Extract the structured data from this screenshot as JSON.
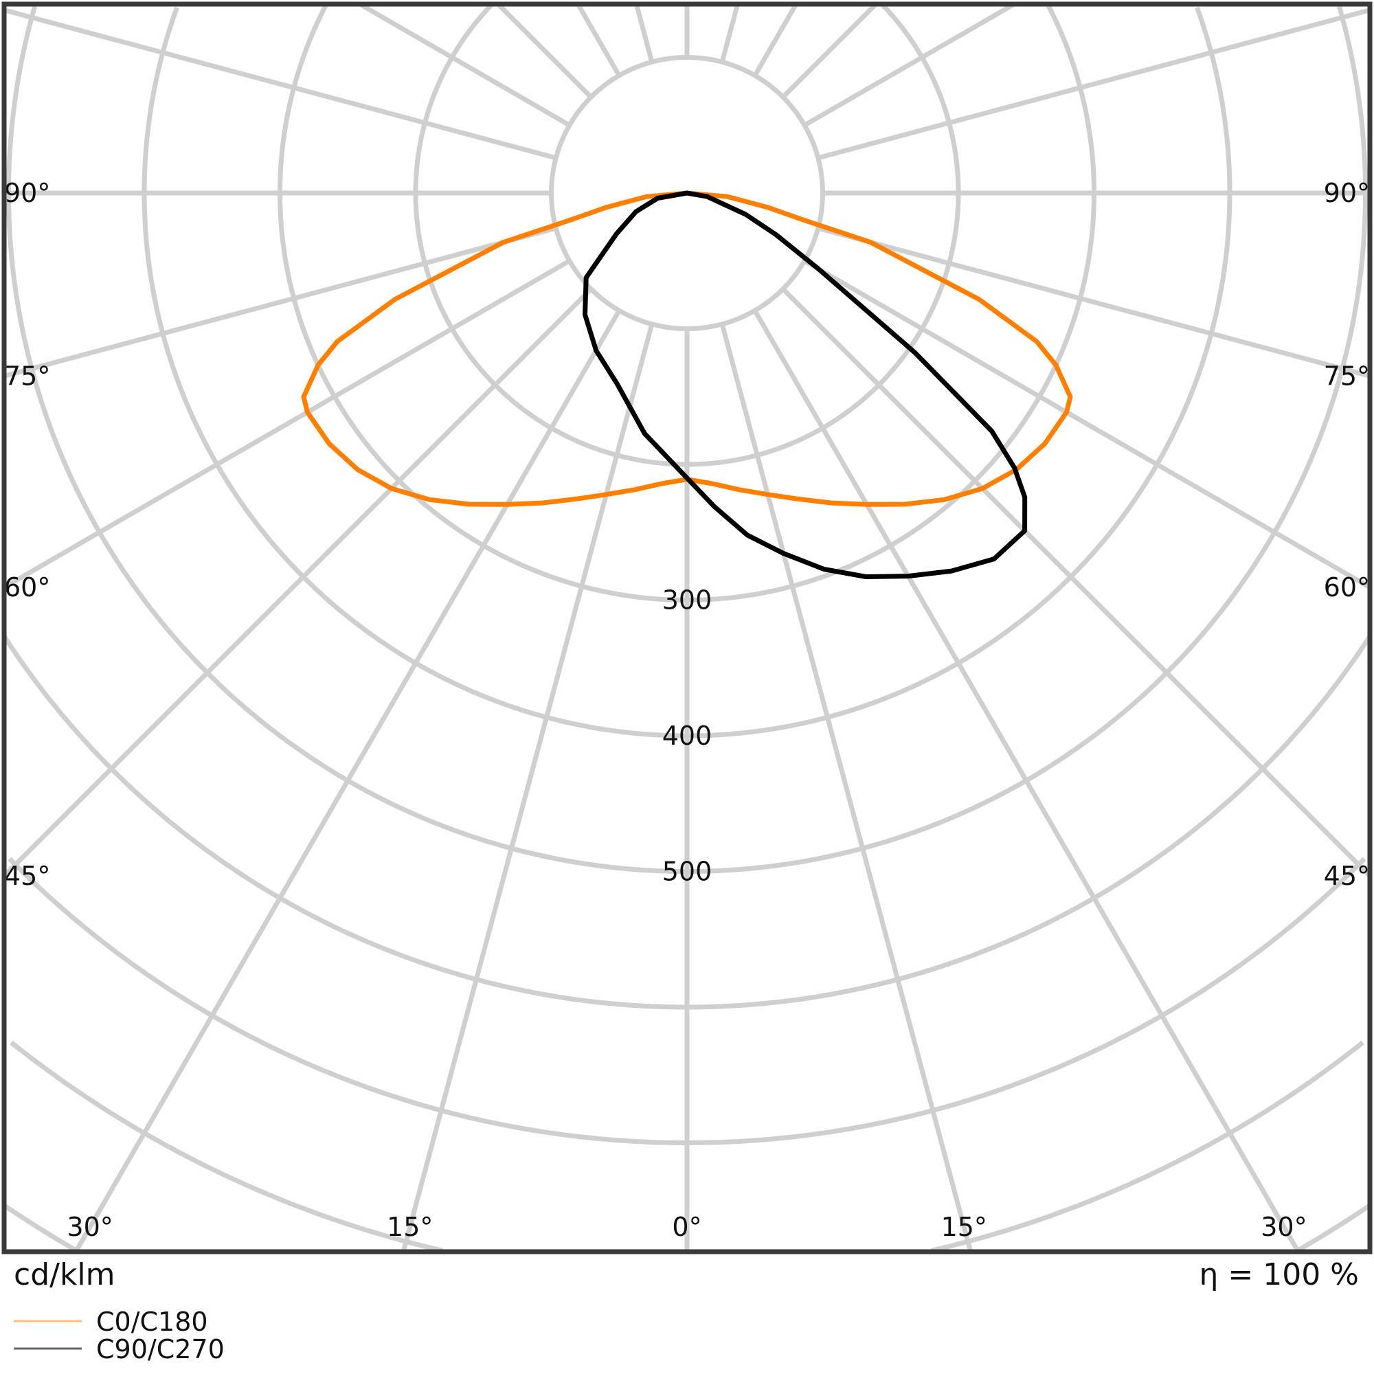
{
  "chart_data": {
    "type": "polar-line",
    "unit_label": "cd/klm",
    "efficiency_label": "η = 100 %",
    "radial_ticks": [
      300,
      400,
      500
    ],
    "radial_range": [
      0,
      1000
    ],
    "ring_step": 100,
    "angle_step_deg": 15,
    "grid": true,
    "legend_placement": "bottom-left",
    "side_angle_labels": [
      "90°",
      "75°",
      "60°",
      "45°"
    ],
    "side_angle_values": [
      90,
      75,
      60,
      45
    ],
    "bottom_angle_labels": [
      "30°",
      "15°",
      "0°",
      "15°",
      "30°"
    ],
    "bottom_angle_values": [
      -30,
      -15,
      0,
      15,
      30
    ],
    "series": [
      {
        "name": "C0/C180",
        "color": "#ff8000",
        "angles": [
          -90,
          -85,
          -80,
          -77,
          -75,
          -70,
          -67,
          -65,
          -62,
          -60,
          -55,
          -50,
          -45,
          -40,
          -35,
          -30,
          -25,
          -20,
          -15,
          -10,
          -5,
          0,
          5,
          10,
          15,
          20,
          25,
          30,
          35,
          40,
          45,
          50,
          55,
          60,
          62,
          65,
          67,
          70,
          75,
          77,
          80,
          85,
          90
        ],
        "values": [
          0,
          30,
          60,
          88,
          140,
          229,
          280,
          300,
          320,
          323,
          322,
          317,
          308,
          295,
          280,
          265,
          252,
          240,
          230,
          222,
          215,
          211,
          215,
          222,
          230,
          240,
          252,
          265,
          280,
          295,
          308,
          317,
          322,
          323,
          320,
          300,
          280,
          229,
          140,
          88,
          60,
          30,
          0
        ]
      },
      {
        "name": "C90/C270",
        "color": "#000000",
        "angles": [
          -90,
          -80,
          -70,
          -60,
          -50,
          -40,
          -30,
          -20,
          -10,
          0,
          5,
          10,
          15,
          20,
          25,
          30,
          35,
          40,
          45,
          48,
          50,
          52,
          55,
          60,
          65,
          70,
          80,
          90
        ],
        "values": [
          0,
          22,
          40,
          60,
          97,
          117,
          134,
          150,
          180,
          210,
          232,
          256,
          275,
          295,
          312,
          326,
          340,
          352,
          352,
          335,
          315,
          285,
          205,
          112,
          72,
          46,
          15,
          0
        ]
      }
    ]
  }
}
